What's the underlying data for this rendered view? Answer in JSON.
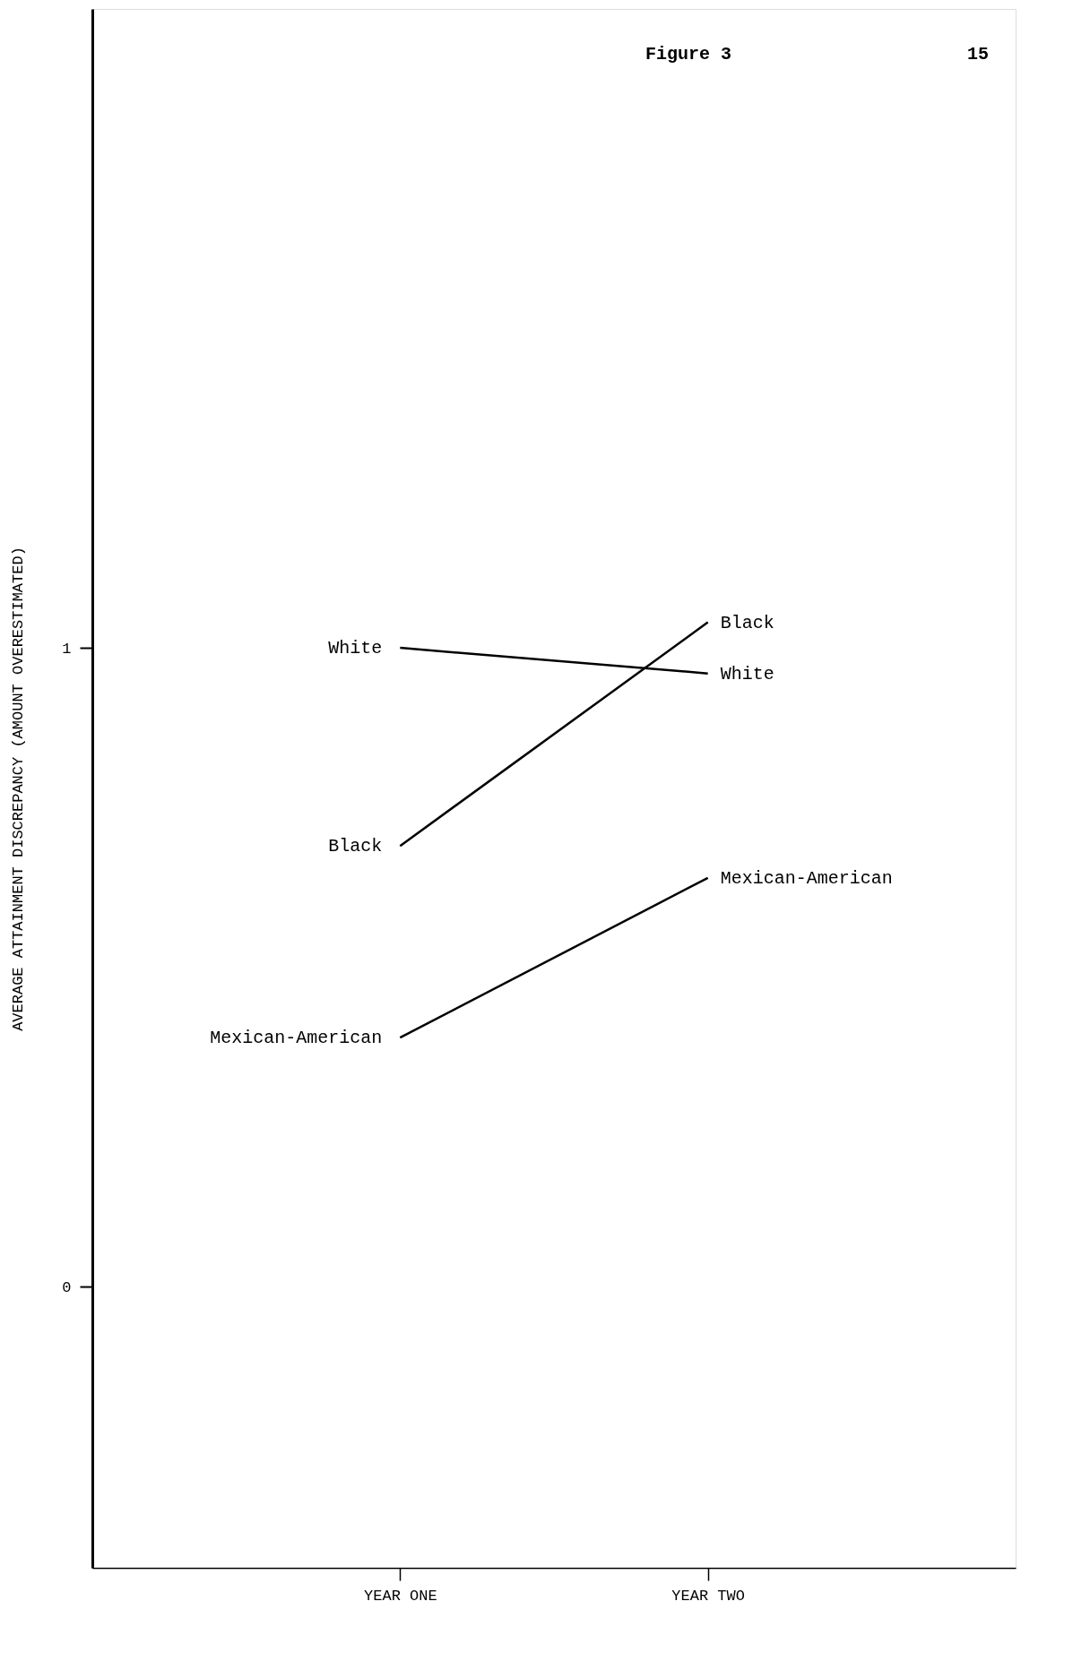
{
  "chart_data": {
    "type": "line",
    "title": "Figure 3",
    "ylabel": "AVERAGE ATTAINMENT DISCREPANCY (AMOUNT OVERESTIMATED)",
    "categories": [
      "YEAR ONE",
      "YEAR TWO"
    ],
    "series": [
      {
        "name": "White",
        "color": "#000000",
        "values": [
          1.0,
          0.96
        ]
      },
      {
        "name": "Black",
        "color": "#000000",
        "values": [
          0.69,
          1.04
        ]
      },
      {
        "name": "Mexican-American",
        "color": "#000000",
        "values": [
          0.39,
          0.64
        ]
      }
    ],
    "ylim": [
      -0.44,
      2.0
    ],
    "yticks": [
      0,
      1
    ],
    "grid": false,
    "legend": false,
    "marker": "none",
    "line_style": "solid",
    "annotations": [
      "15"
    ]
  }
}
